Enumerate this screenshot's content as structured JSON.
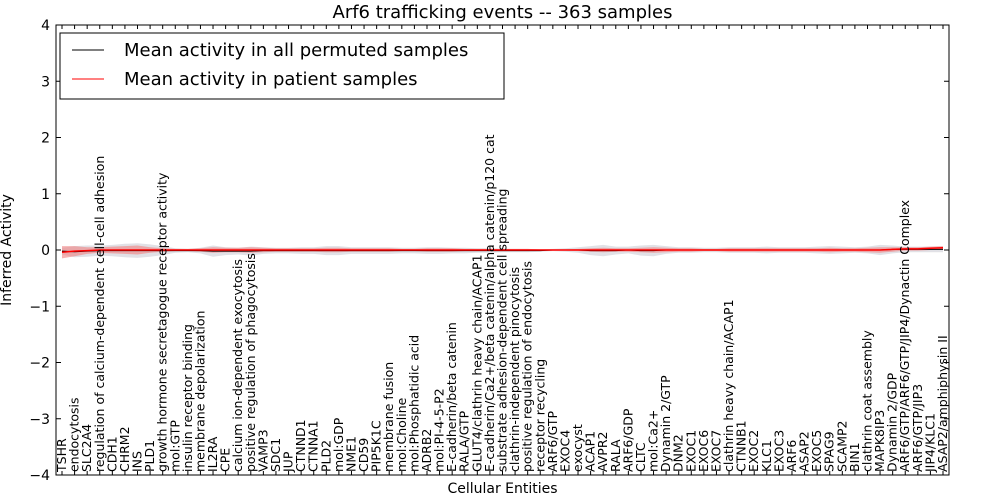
{
  "chart_data": {
    "type": "line",
    "title": "Arf6 trafficking events -- 363 samples",
    "xlabel": "Cellular Entities",
    "ylabel": "Inferred Activity",
    "ylim": [
      -4,
      4
    ],
    "yticks": [
      4,
      3,
      2,
      1,
      0,
      -1,
      -2,
      -3,
      -4
    ],
    "ytick_labels": [
      "4",
      "3",
      "2",
      "1",
      "0",
      "−1",
      "−2",
      "−3",
      "−4"
    ],
    "legend_position": "top-left",
    "entities": [
      "TSHR",
      "endocytosis",
      "SLC2A4",
      "regulation of calcium-dependent cell-cell adhesion",
      "CDH1",
      "CHRM2",
      "INS",
      "PLD1",
      "growth hormone secretagogue receptor activity",
      "mol:GTP",
      "insulin receptor binding",
      "membrane depolarization",
      "IL2RA",
      "CPE",
      "calcium ion-dependent exocytosis",
      "positive regulation of phagocytosis",
      "VAMP3",
      "SDC1",
      "JUP",
      "CTNND1",
      "CTNNA1",
      "PLD2",
      "mol:GDP",
      "NME1",
      "CD59",
      "PIP5K1C",
      "membrane fusion",
      "mol:Choline",
      "mol:Phosphatidic acid",
      "ADRB2",
      "mol:PI-4-5-P2",
      "E-cadherin/beta catenin",
      "RALA/GTP",
      "GLUT4/clathrin heavy chain/ACAP1",
      "E-cadherin/Ca2+/beta catenin/alpha catenin/p120 cat",
      "substrate adhesion-dependent cell spreading",
      "clathrin-independent pinocytosis",
      "positive regulation of endocytosis",
      "receptor recycling",
      "ARF6/GTP",
      "EXOC4",
      "exocyst",
      "ACAP1",
      "AVPR2",
      "RALA",
      "ARF6/GDP",
      "CLTC",
      "mol:Ca2+",
      "Dynamin 2/GTP",
      "DNM2",
      "EXOC1",
      "EXOC6",
      "EXOC7",
      "clathrin heavy chain/ACAP1",
      "CTNNB1",
      "EXOC2",
      "KLC1",
      "EXOC3",
      "ARF6",
      "ASAP2",
      "EXOC5",
      "SPAG9",
      "SCAMP2",
      "BIN1",
      "clathrin coat assembly",
      "MAPK8IP3",
      "Dynamin 2/GDP",
      "ARF6/GTP/ARF6/GTP/JIP4/Dynactin Complex",
      "ARF6/GTP/JIP3",
      "JIP4/KLC1",
      "ASAP2/amphiphysin II"
    ],
    "series": [
      {
        "name": "Mean activity in all permuted samples",
        "color": "#000000",
        "band_color": "#c8c8d2",
        "values": [
          -0.02,
          -0.03,
          -0.02,
          -0.01,
          -0.01,
          -0.01,
          -0.01,
          -0.01,
          -0.01,
          -0.01,
          -0.01,
          -0.01,
          -0.02,
          -0.02,
          -0.02,
          -0.02,
          -0.01,
          -0.01,
          -0.01,
          -0.01,
          -0.01,
          -0.01,
          -0.01,
          -0.01,
          -0.01,
          -0.01,
          -0.01,
          -0.01,
          -0.01,
          -0.01,
          -0.01,
          -0.01,
          -0.01,
          -0.01,
          -0.01,
          -0.01,
          -0.01,
          -0.01,
          -0.01,
          0.0,
          0.0,
          0.0,
          -0.01,
          -0.01,
          -0.01,
          0.0,
          -0.01,
          -0.01,
          0.0,
          0.0,
          0.0,
          0.0,
          0.0,
          0.0,
          0.0,
          0.0,
          0.0,
          0.0,
          0.0,
          0.0,
          0.0,
          0.0,
          0.0,
          0.0,
          0.0,
          0.0,
          0.01,
          0.01,
          0.01,
          0.01,
          0.01
        ],
        "spread": [
          0.06,
          0.1,
          0.1,
          0.09,
          0.1,
          0.12,
          0.13,
          0.11,
          0.08,
          0.04,
          0.03,
          0.05,
          0.1,
          0.07,
          0.06,
          0.08,
          0.06,
          0.05,
          0.05,
          0.06,
          0.06,
          0.08,
          0.08,
          0.06,
          0.06,
          0.06,
          0.06,
          0.05,
          0.05,
          0.06,
          0.06,
          0.05,
          0.05,
          0.04,
          0.04,
          0.03,
          0.03,
          0.03,
          0.02,
          0.02,
          0.03,
          0.05,
          0.08,
          0.1,
          0.07,
          0.06,
          0.09,
          0.1,
          0.07,
          0.05,
          0.05,
          0.04,
          0.04,
          0.05,
          0.05,
          0.05,
          0.06,
          0.05,
          0.05,
          0.05,
          0.06,
          0.07,
          0.06,
          0.05,
          0.06,
          0.09,
          0.07,
          0.05,
          0.05,
          0.05,
          0.05
        ]
      },
      {
        "name": "Mean activity in patient samples",
        "color": "#ff0000",
        "band_color": "#f08080",
        "values": [
          -0.04,
          -0.02,
          -0.01,
          0.0,
          0.0,
          0.0,
          0.0,
          0.0,
          0.0,
          0.0,
          0.0,
          0.0,
          0.0,
          0.0,
          0.0,
          0.0,
          0.0,
          0.0,
          0.0,
          0.0,
          0.0,
          0.0,
          0.0,
          0.0,
          0.0,
          0.0,
          0.0,
          0.0,
          0.0,
          0.0,
          0.0,
          0.0,
          0.0,
          0.0,
          0.0,
          0.0,
          0.0,
          0.0,
          0.0,
          0.0,
          0.0,
          0.0,
          0.0,
          0.0,
          0.0,
          0.0,
          0.0,
          0.0,
          0.0,
          0.0,
          0.0,
          0.0,
          0.0,
          0.0,
          0.0,
          0.0,
          0.0,
          0.0,
          0.0,
          0.0,
          0.0,
          0.0,
          0.0,
          0.0,
          0.0,
          0.0,
          0.01,
          0.02,
          0.02,
          0.03,
          0.04
        ],
        "spread": [
          0.11,
          0.09,
          0.06,
          0.05,
          0.06,
          0.07,
          0.08,
          0.05,
          0.03,
          0.02,
          0.02,
          0.03,
          0.05,
          0.04,
          0.04,
          0.05,
          0.04,
          0.03,
          0.03,
          0.03,
          0.03,
          0.04,
          0.04,
          0.03,
          0.03,
          0.03,
          0.03,
          0.02,
          0.02,
          0.03,
          0.03,
          0.03,
          0.02,
          0.02,
          0.02,
          0.02,
          0.02,
          0.02,
          0.01,
          0.01,
          0.01,
          0.02,
          0.03,
          0.04,
          0.03,
          0.03,
          0.04,
          0.05,
          0.04,
          0.03,
          0.03,
          0.02,
          0.02,
          0.03,
          0.03,
          0.03,
          0.03,
          0.03,
          0.03,
          0.03,
          0.03,
          0.04,
          0.03,
          0.03,
          0.04,
          0.05,
          0.04,
          0.03,
          0.03,
          0.03,
          0.03
        ]
      }
    ]
  }
}
